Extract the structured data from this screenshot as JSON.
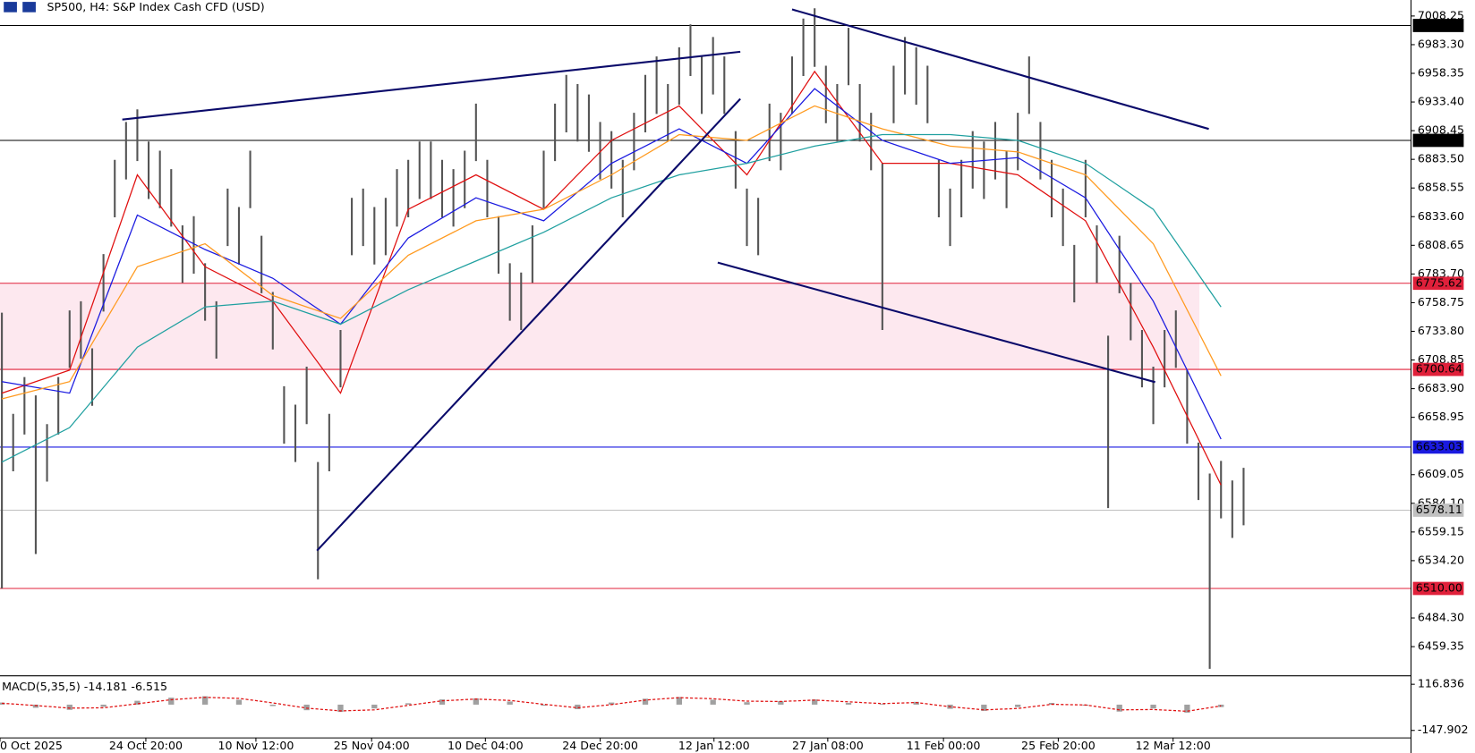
{
  "chart_data": [
    {
      "type": "ohlc",
      "title": "SP500, H4:  S&P Index Cash CFD (USD)",
      "xlim": [
        0,
        125
      ],
      "ylim": [
        6434.77,
        7022.18
      ],
      "xticks": [
        {
          "value": 0,
          "label": "0 Oct 2025"
        },
        {
          "value": 12.92,
          "label": "24 Oct 20:00"
        },
        {
          "value": 22.67,
          "label": "10 Nov 12:00"
        },
        {
          "value": 32.92,
          "label": "25 Nov 04:00"
        },
        {
          "value": 43,
          "label": "10 Dec 04:00"
        },
        {
          "value": 53.17,
          "label": "24 Dec 20:00"
        },
        {
          "value": 63.25,
          "label": "12 Jan 12:00"
        },
        {
          "value": 73.33,
          "label": "27 Jan 08:00"
        },
        {
          "value": 83.58,
          "label": "11 Feb 00:00"
        },
        {
          "value": 93.75,
          "label": "25 Feb 20:00"
        },
        {
          "value": 103.92,
          "label": "12 Mar 12:00"
        }
      ],
      "yticks": [
        7008.25,
        {
          "value": 6983.3,
          "label": "6983.30"
        },
        6958.35,
        {
          "value": 6933.4,
          "label": "6933.40"
        },
        6908.45,
        {
          "value": 6883.5,
          "label": "6883.50"
        },
        6858.55,
        {
          "value": 6833.6,
          "label": "6833.60"
        },
        6808.65,
        {
          "value": 6783.7,
          "label": "6783.70"
        },
        6758.75,
        {
          "value": 6733.8,
          "label": "6733.80"
        },
        6708.85,
        {
          "value": 6683.9,
          "label": "6683.90"
        },
        6658.95,
        6609.05,
        {
          "value": 6584.1,
          "label": "6584.10"
        },
        6559.15,
        {
          "value": 6534.2,
          "label": "6534.20"
        },
        {
          "value": 6484.3,
          "label": "6484.30"
        },
        6459.35
      ],
      "bar_color": "#555555",
      "high": [
        6750,
        6662,
        6694,
        6678,
        6653,
        6694,
        6752,
        6760,
        6719,
        6801,
        6883,
        6916,
        6927,
        6899,
        6891,
        6875,
        6826,
        6834,
        6793,
        6760,
        6858,
        6842,
        6891,
        6817,
        6768,
        6686,
        6670,
        6703,
        6620,
        6662,
        6735,
        6850,
        6858,
        6842,
        6850,
        6875,
        6883,
        6899,
        6899,
        6883,
        6875,
        6891,
        6932,
        6883,
        6834,
        6793,
        6785,
        6826,
        6891,
        6932,
        6957,
        6949,
        6940,
        6916,
        6908,
        6883,
        6924,
        6957,
        6973,
        6949,
        6981,
        7001,
        6973,
        6990,
        6973,
        6908,
        6858,
        6850,
        6932,
        6924,
        6973,
        7006,
        7015,
        6965,
        6949,
        6998,
        6949,
        6924,
        6880,
        6965,
        6990,
        6981,
        6965,
        6883,
        6858,
        6883,
        6908,
        6899,
        6916,
        6891,
        6924,
        6973,
        6916,
        6883,
        6858,
        6809,
        6883,
        6826,
        6730,
        6817,
        6776,
        6735,
        6703,
        6735,
        6752,
        6700,
        6637,
        6610,
        6621,
        6604,
        6615
      ],
      "low": [
        6510,
        6612,
        6644,
        6540,
        6603,
        6644,
        6702,
        6710,
        6669,
        6751,
        6833,
        6866,
        6882,
        6849,
        6841,
        6825,
        6776,
        6784,
        6743,
        6710,
        6808,
        6792,
        6841,
        6767,
        6718,
        6636,
        6620,
        6653,
        6518,
        6612,
        6685,
        6800,
        6808,
        6792,
        6800,
        6825,
        6833,
        6849,
        6849,
        6833,
        6825,
        6841,
        6882,
        6833,
        6784,
        6743,
        6735,
        6776,
        6841,
        6882,
        6907,
        6899,
        6890,
        6866,
        6858,
        6833,
        6874,
        6907,
        6923,
        6899,
        6931,
        6956,
        6923,
        6940,
        6923,
        6858,
        6808,
        6800,
        6882,
        6874,
        6923,
        6956,
        6964,
        6915,
        6899,
        6948,
        6899,
        6874,
        6735,
        6915,
        6940,
        6931,
        6915,
        6833,
        6808,
        6833,
        6858,
        6849,
        6866,
        6841,
        6874,
        6923,
        6866,
        6833,
        6808,
        6759,
        6833,
        6776,
        6580,
        6767,
        6726,
        6685,
        6653,
        6685,
        6702,
        6636,
        6587,
        6440,
        6571,
        6554,
        6565
      ],
      "series": [
        {
          "color": "#e01010",
          "x": [
            0,
            6,
            12,
            18,
            24,
            30,
            36,
            42,
            48,
            54,
            60,
            66,
            72,
            78,
            84,
            90,
            96,
            102,
            108
          ],
          "values": [
            6680,
            6700,
            6870,
            6790,
            6760,
            6680,
            6840,
            6870,
            6840,
            6900,
            6930,
            6870,
            6960,
            6880,
            6880,
            6870,
            6830,
            6720,
            6600
          ]
        },
        {
          "color": "#1a1ae0",
          "x": [
            0,
            6,
            12,
            18,
            24,
            30,
            36,
            42,
            48,
            54,
            60,
            66,
            72,
            78,
            84,
            90,
            96,
            102,
            108
          ],
          "values": [
            6690,
            6680,
            6835,
            6805,
            6780,
            6740,
            6815,
            6850,
            6830,
            6880,
            6910,
            6880,
            6945,
            6900,
            6880,
            6885,
            6850,
            6760,
            6640
          ]
        },
        {
          "color": "#ff9a1f",
          "x": [
            0,
            6,
            12,
            18,
            24,
            30,
            36,
            42,
            48,
            54,
            60,
            66,
            72,
            78,
            84,
            90,
            96,
            102,
            108
          ],
          "values": [
            6675,
            6690,
            6790,
            6810,
            6765,
            6745,
            6800,
            6830,
            6840,
            6870,
            6905,
            6900,
            6930,
            6910,
            6895,
            6890,
            6870,
            6810,
            6695
          ]
        },
        {
          "color": "#20a0a0",
          "x": [
            0,
            6,
            12,
            18,
            24,
            30,
            36,
            42,
            48,
            54,
            60,
            66,
            72,
            78,
            84,
            90,
            96,
            102,
            108
          ],
          "values": [
            6620,
            6650,
            6720,
            6755,
            6760,
            6740,
            6770,
            6795,
            6820,
            6850,
            6870,
            6880,
            6895,
            6905,
            6905,
            6900,
            6880,
            6840,
            6755
          ]
        }
      ],
      "levels": [
        {
          "value": 7000,
          "label": "7000.00",
          "color": "#000000"
        },
        {
          "value": 6900,
          "label": "6900.00",
          "color": "#000000"
        },
        {
          "value": 6775.62,
          "label": "6775.62",
          "color": "#e0203a"
        },
        {
          "value": 6700.64,
          "label": "6700.64",
          "color": "#e0203a"
        },
        {
          "value": 6633.03,
          "label": "6633.03",
          "color": "#1a1ae0"
        },
        {
          "value": 6578.11,
          "label": "6578.11",
          "color": "#c0c0c0"
        },
        {
          "value": 6510,
          "label": "6510.00",
          "color": "#e0203a"
        }
      ],
      "zone_color": "#fde8ef"
    },
    {
      "type": "macd",
      "title": "MACD(5,35,5) -14.181 -6.515",
      "ylim": [
        -207.3,
        154.6
      ],
      "yticks": [
        116.836,
        -147.902
      ],
      "x": [
        0,
        3,
        6,
        9,
        12,
        15,
        18,
        21,
        24,
        27,
        30,
        33,
        36,
        39,
        42,
        45,
        48,
        51,
        54,
        57,
        60,
        63,
        66,
        69,
        72,
        75,
        78,
        81,
        84,
        87,
        90,
        93,
        96,
        99,
        102,
        105,
        108
      ],
      "histogram": [
        12,
        -18,
        -30,
        -12,
        22,
        40,
        48,
        28,
        -8,
        -32,
        -42,
        -22,
        8,
        30,
        36,
        18,
        -6,
        -26,
        12,
        34,
        44,
        28,
        14,
        20,
        30,
        10,
        4,
        16,
        -24,
        -36,
        -14,
        10,
        -6,
        -40,
        -22,
        -46,
        -14
      ],
      "signal": [
        8,
        -5,
        -20,
        -18,
        5,
        28,
        42,
        36,
        10,
        -20,
        -36,
        -30,
        -4,
        22,
        32,
        24,
        2,
        -18,
        0,
        26,
        40,
        34,
        20,
        18,
        26,
        16,
        6,
        12,
        -12,
        -30,
        -22,
        2,
        -2,
        -30,
        -28,
        -38,
        -7
      ],
      "hist_color": "#a0a0a0",
      "signal_color": "#e01010"
    }
  ]
}
